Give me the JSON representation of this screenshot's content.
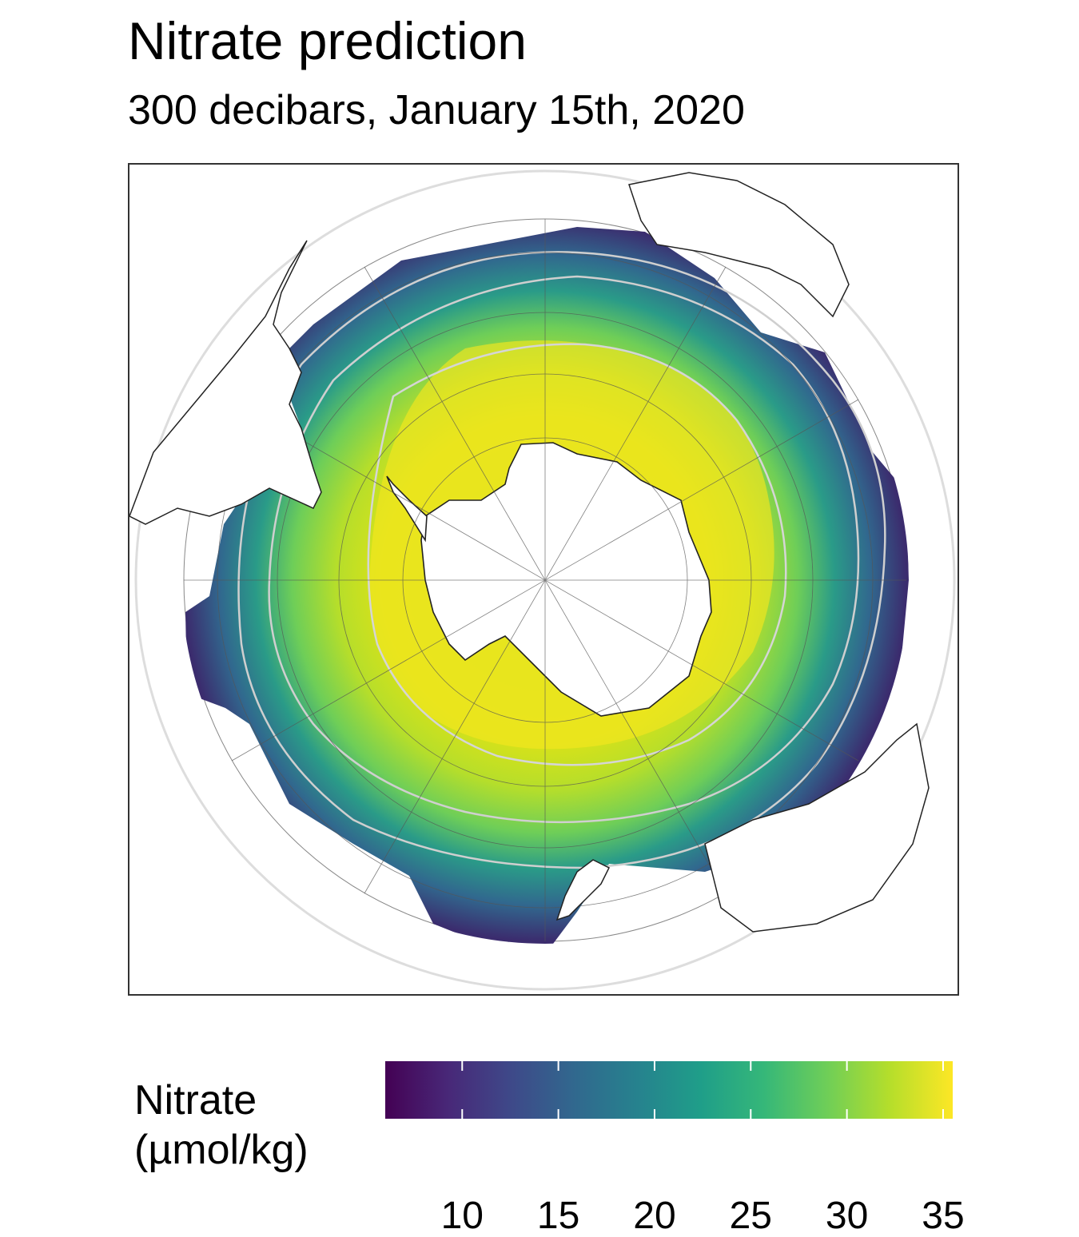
{
  "title": "Nitrate prediction",
  "subtitle": "300 decibars, January 15th, 2020",
  "legend": {
    "title_line1": "Nitrate",
    "title_line2": "(µmol/kg)",
    "min": 6,
    "max": 35.5,
    "ticks": [
      {
        "value": 10,
        "label": "10"
      },
      {
        "value": 15,
        "label": "15"
      },
      {
        "value": 20,
        "label": "20"
      },
      {
        "value": 25,
        "label": "25"
      },
      {
        "value": 30,
        "label": "30"
      },
      {
        "value": 35,
        "label": "35"
      }
    ],
    "colormap": [
      "#440154",
      "#482878",
      "#3e4989",
      "#31688e",
      "#26828e",
      "#1f9e89",
      "#35b779",
      "#6ece58",
      "#b5de2b",
      "#fde725"
    ]
  },
  "map": {
    "projection": "south polar stereographic",
    "land_fill": "#ffffff",
    "coastline_color": "#222222",
    "front_color": "#cfcfcf",
    "graticule_color": "#444444"
  }
}
